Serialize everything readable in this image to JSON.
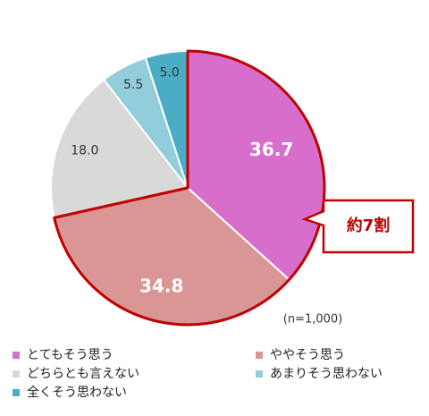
{
  "chart_data": {
    "type": "pie",
    "categories": [
      "とてもそう思う",
      "ややそう思う",
      "どちらとも言えない",
      "あまりそう思わない",
      "全くそう思わない"
    ],
    "values": [
      36.7,
      34.8,
      18.0,
      5.5,
      5.0
    ],
    "value_labels": [
      "36.7",
      "34.8",
      "18.0",
      "5.5",
      "5.0"
    ],
    "colors": [
      "#d86ecc",
      "#d99694",
      "#d9d9d9",
      "#92cddc",
      "#4bacc6"
    ],
    "annotation": "約7割",
    "note": "(n=1,000)"
  }
}
